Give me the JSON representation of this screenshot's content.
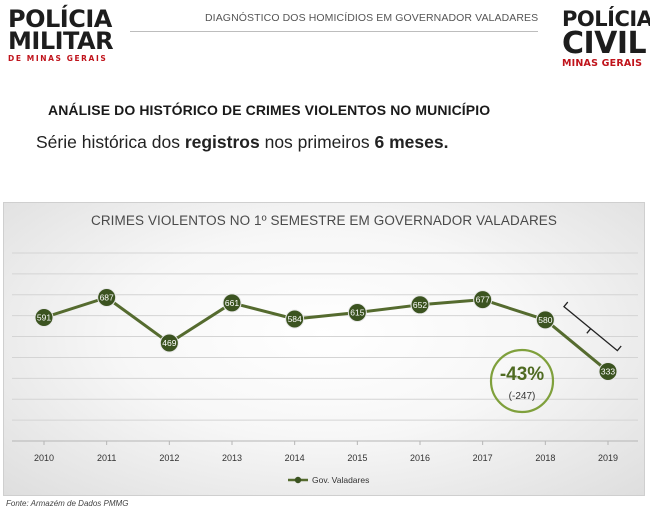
{
  "header": {
    "pm_logo": {
      "line1": "POLÍCIA",
      "line2": "MILITAR",
      "line3": "DE MINAS GERAIS"
    },
    "title": "DIAGNÓSTICO DOS HOMICÍDIOS EM GOVERNADOR VALADARES",
    "pc_logo": {
      "line1": "POLÍCIA",
      "line2": "CIVIL",
      "line3": "MINAS GERAIS"
    }
  },
  "section_title": "ANÁLISE DO HISTÓRICO DE CRIMES VIOLENTOS NO MUNICÍPIO",
  "subtitle": {
    "part1": "Série histórica dos ",
    "bold1": "registros",
    "part2": " nos primeiros ",
    "bold2": "6 meses."
  },
  "chart_data": {
    "type": "line",
    "title": "CRIMES VIOLENTOS NO 1º SEMESTRE EM GOVERNADOR VALADARES",
    "categories": [
      "2010",
      "2011",
      "2012",
      "2013",
      "2014",
      "2015",
      "2016",
      "2017",
      "2018",
      "2019"
    ],
    "series": [
      {
        "name": "Gov. Valadares",
        "values": [
          591,
          687,
          469,
          661,
          584,
          615,
          652,
          677,
          580,
          333
        ]
      }
    ],
    "ylim": [
      0,
      900
    ],
    "grid": true,
    "legend_position": "bottom",
    "annotation": {
      "pct": "-43%",
      "abs": "(-247)",
      "from": "2018",
      "to": "2019"
    },
    "colors": {
      "line": "#556b2f",
      "marker": "#3b5320",
      "marker_text": "#ffffff",
      "annotation": "#7fa03c"
    }
  },
  "source": "Fonte: Armazém de Dados PMMG"
}
